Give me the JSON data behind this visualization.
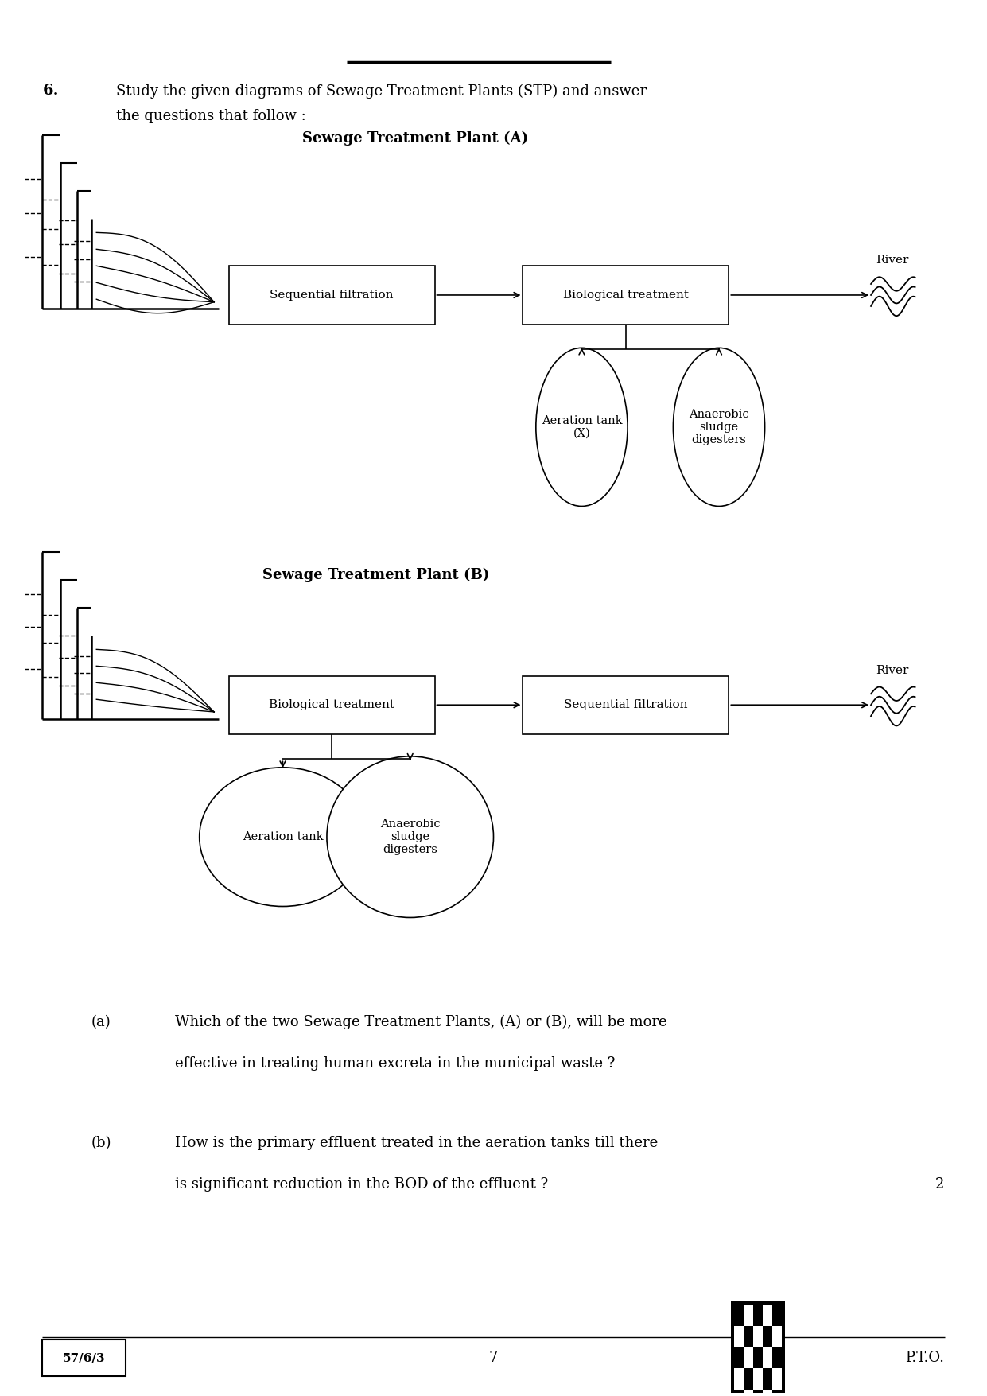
{
  "bg_color": "#ffffff",
  "page_width": 12.41,
  "page_height": 17.55,
  "q_number": "6.",
  "q_text_line1": "Study the given diagrams of Sewage Treatment Plants (STP) and answer",
  "q_text_line2": "the questions that follow :",
  "diagram_A_title": "Sewage Treatment Plant (A)",
  "diagram_B_title": "Sewage Treatment Plant (B)",
  "box_A_seq_filt": "Sequential filtration",
  "box_A_bio_treat": "Biological treatment",
  "circle_A_aer": "Aeration tank\n(X)",
  "circle_A_ana": "Anaerobic\nsludge\ndigesters",
  "box_B_bio_treat": "Biological treatment",
  "box_B_seq_filt": "Sequential filtration",
  "circle_B_aer": "Aeration tank",
  "circle_B_ana": "Anaerobic\nsludge\ndigesters",
  "river_label": "River",
  "qa_label": "(a)",
  "qa_text_line1": "Which of the two Sewage Treatment Plants, (A) or (B), will be more",
  "qa_text_line2": "effective in treating human excreta in the municipal waste ?",
  "qb_label": "(b)",
  "qb_text_line1": "How is the primary effluent treated in the aeration tanks till there",
  "qb_text_line2": "is significant reduction in the BOD of the effluent ?",
  "marks": "2",
  "footer_left": "57/6/3",
  "footer_center": "7",
  "footer_right": "P.T.O."
}
